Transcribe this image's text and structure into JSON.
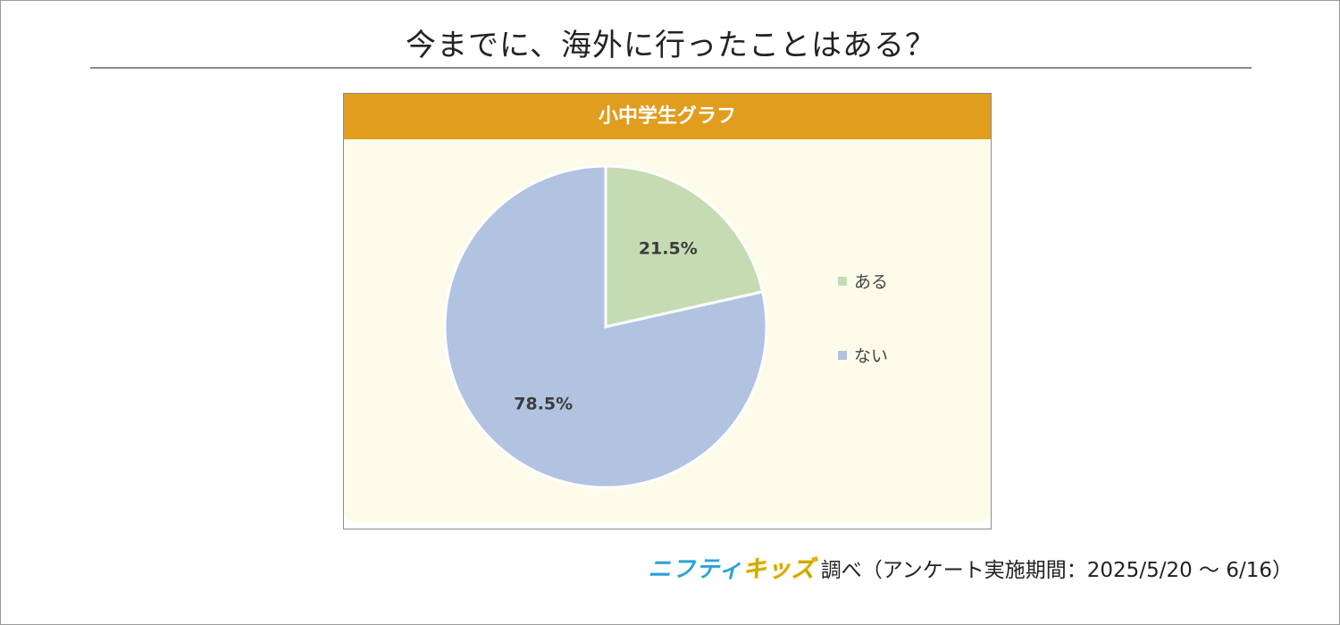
{
  "title": "今までに、海外に行ったことはある？",
  "chart_data": {
    "type": "pie",
    "title": "小中学生グラフ",
    "categories": [
      "ある",
      "ない"
    ],
    "values": [
      21.5,
      78.5
    ],
    "data_labels": [
      "21.5%",
      "78.5%"
    ],
    "colors": [
      "#c5dcb2",
      "#b2c3e1"
    ],
    "start_angle_deg": 0,
    "direction": "clockwise",
    "legend_placement": "right",
    "header_color": "#e09d1e",
    "background_color": "#fdfbea"
  },
  "footer": {
    "brand_nifty": "ニフティ",
    "brand_kids": "キッズ",
    "brand_nifty_color": "#2aa3d8",
    "brand_kids_color": "#4cae3b",
    "note": "調べ（アンケート実施期間：2025/5/20 ～ 6/16）"
  }
}
